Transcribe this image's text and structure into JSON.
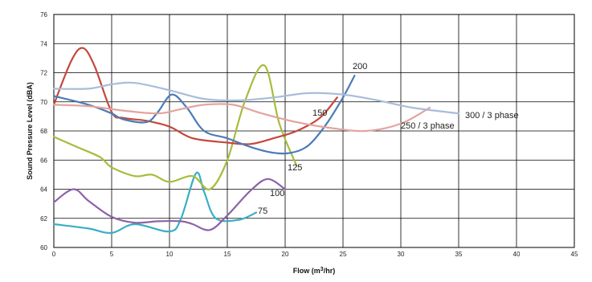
{
  "chart_data": {
    "type": "line",
    "title": "",
    "xlabel": "Flow (m³/hr)",
    "ylabel": "Sound Pressure Level (dBA)",
    "xlim": [
      0,
      45
    ],
    "ylim": [
      60,
      76
    ],
    "x_ticks": [
      0,
      5,
      10,
      15,
      20,
      25,
      30,
      35,
      40,
      45
    ],
    "y_ticks": [
      60,
      62,
      64,
      66,
      68,
      70,
      72,
      74,
      76
    ],
    "grid": true,
    "legend": "inline labels",
    "series": [
      {
        "name": "75",
        "color": "#3aaec6",
        "points": [
          [
            0,
            61.6
          ],
          [
            3,
            61.3
          ],
          [
            5,
            61.0
          ],
          [
            7,
            61.6
          ],
          [
            10,
            61.1
          ],
          [
            11,
            62.0
          ],
          [
            12.3,
            65.1
          ],
          [
            13,
            63.8
          ],
          [
            14,
            62.0
          ],
          [
            16,
            61.9
          ],
          [
            17.5,
            62.4
          ]
        ]
      },
      {
        "name": "100",
        "color": "#8d62a8",
        "points": [
          [
            0,
            63.1
          ],
          [
            1.7,
            64.0
          ],
          [
            3,
            63.2
          ],
          [
            5,
            62.1
          ],
          [
            7,
            61.7
          ],
          [
            9,
            61.8
          ],
          [
            11,
            61.8
          ],
          [
            12,
            61.6
          ],
          [
            13.5,
            61.2
          ],
          [
            15,
            62.2
          ],
          [
            17,
            63.9
          ],
          [
            18.5,
            64.7
          ],
          [
            20,
            64.0
          ]
        ]
      },
      {
        "name": "125",
        "color": "#a5bd3c",
        "points": [
          [
            0,
            67.6
          ],
          [
            2,
            66.9
          ],
          [
            4,
            66.2
          ],
          [
            5,
            65.5
          ],
          [
            7,
            64.9
          ],
          [
            8.5,
            65.0
          ],
          [
            10,
            64.5
          ],
          [
            12,
            64.9
          ],
          [
            13.5,
            64.0
          ],
          [
            15,
            66.0
          ],
          [
            16.5,
            70.0
          ],
          [
            18.2,
            72.5
          ],
          [
            19.5,
            68.5
          ],
          [
            21,
            65.6
          ]
        ]
      },
      {
        "name": "150",
        "color": "#c4473c",
        "points": [
          [
            0,
            69.8
          ],
          [
            1.5,
            72.8
          ],
          [
            2.5,
            73.7
          ],
          [
            3.5,
            72.5
          ],
          [
            5,
            69.3
          ],
          [
            6,
            68.9
          ],
          [
            8,
            68.7
          ],
          [
            10,
            68.3
          ],
          [
            12,
            67.5
          ],
          [
            15,
            67.2
          ],
          [
            17,
            67.1
          ],
          [
            19,
            67.5
          ],
          [
            21,
            68.0
          ],
          [
            23,
            68.9
          ],
          [
            24.5,
            70.3
          ]
        ]
      },
      {
        "name": "200",
        "color": "#4b7bb8",
        "points": [
          [
            0,
            70.4
          ],
          [
            3,
            69.8
          ],
          [
            5,
            69.2
          ],
          [
            6,
            68.8
          ],
          [
            8,
            68.6
          ],
          [
            9,
            69.3
          ],
          [
            10.2,
            70.5
          ],
          [
            11.5,
            69.6
          ],
          [
            13,
            68.0
          ],
          [
            15,
            67.5
          ],
          [
            17,
            66.9
          ],
          [
            19,
            66.5
          ],
          [
            20.5,
            66.5
          ],
          [
            22,
            67.0
          ],
          [
            23.5,
            68.4
          ],
          [
            25,
            70.3
          ],
          [
            26,
            71.8
          ]
        ]
      },
      {
        "name": "250 / 3 phase",
        "color": "#e3a49c",
        "points": [
          [
            0,
            69.8
          ],
          [
            3,
            69.7
          ],
          [
            6,
            69.4
          ],
          [
            9,
            69.2
          ],
          [
            11,
            69.5
          ],
          [
            13,
            69.8
          ],
          [
            15.5,
            69.8
          ],
          [
            18,
            69.2
          ],
          [
            21,
            68.6
          ],
          [
            24,
            68.2
          ],
          [
            27,
            68.0
          ],
          [
            30,
            68.5
          ],
          [
            32.5,
            69.6
          ]
        ]
      },
      {
        "name": "300 / 3 phase",
        "color": "#a7bddb",
        "points": [
          [
            0,
            70.9
          ],
          [
            3,
            70.9
          ],
          [
            5,
            71.2
          ],
          [
            7,
            71.3
          ],
          [
            10,
            70.8
          ],
          [
            13,
            70.2
          ],
          [
            16,
            70.1
          ],
          [
            19,
            70.3
          ],
          [
            22,
            70.6
          ],
          [
            25,
            70.5
          ],
          [
            28,
            70.1
          ],
          [
            31,
            69.6
          ],
          [
            35,
            69.2
          ]
        ]
      }
    ]
  }
}
